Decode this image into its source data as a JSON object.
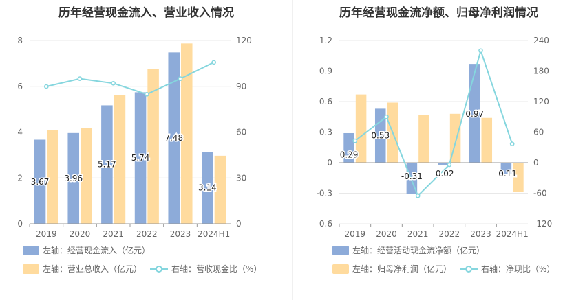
{
  "chart_data": [
    {
      "type": "bar",
      "title": "历年经营现金流入、营业收入情况",
      "categories": [
        "2019",
        "2020",
        "2021",
        "2022",
        "2023",
        "2024H1"
      ],
      "left_axis": {
        "ylim": [
          0,
          8
        ],
        "ticks": [
          "0",
          "2",
          "4",
          "6",
          "8"
        ]
      },
      "right_axis": {
        "ylim": [
          0,
          120
        ],
        "ticks": [
          "0",
          "30",
          "60",
          "90",
          "120"
        ]
      },
      "series": [
        {
          "name": "左轴：经营现金流入（亿元）",
          "type": "bar",
          "axis": "left",
          "color": "#8dabd9",
          "values": [
            3.67,
            3.96,
            5.17,
            5.74,
            7.48,
            3.14
          ],
          "labels": [
            "3.67",
            "3.96",
            "5.17",
            "5.74",
            "7.48",
            "3.14"
          ]
        },
        {
          "name": "左轴：营业总收入（亿元）",
          "type": "bar",
          "axis": "left",
          "color": "#ffdb9e",
          "values": [
            4.08,
            4.17,
            5.62,
            6.77,
            7.87,
            2.97
          ]
        },
        {
          "name": "右轴：营收现金比（%）",
          "type": "line",
          "axis": "right",
          "color": "#85d6de",
          "values": [
            89.9,
            95.0,
            92.0,
            84.8,
            95.0,
            105.7
          ]
        }
      ],
      "grid": true,
      "legend_position": "bottom"
    },
    {
      "type": "bar",
      "title": "历年经营现金流净额、归母净利润情况",
      "categories": [
        "2019",
        "2020",
        "2021",
        "2022",
        "2023",
        "2024H1"
      ],
      "left_axis": {
        "ylim": [
          -0.6,
          1.2
        ],
        "ticks": [
          "-0.6",
          "-0.3",
          "0",
          "0.3",
          "0.6",
          "0.9",
          "1.2"
        ]
      },
      "right_axis": {
        "ylim": [
          -120,
          240
        ],
        "ticks": [
          "-120",
          "-60",
          "0",
          "60",
          "120",
          "180",
          "240"
        ]
      },
      "series": [
        {
          "name": "左轴：经营活动现金流净额（亿元）",
          "type": "bar",
          "axis": "left",
          "color": "#8dabd9",
          "values": [
            0.29,
            0.53,
            -0.31,
            -0.02,
            0.97,
            -0.11
          ],
          "labels": [
            "0.29",
            "0.53",
            "-0.31",
            "-0.02",
            "0.97",
            "-0.11"
          ]
        },
        {
          "name": "左轴：归母净利润（亿元）",
          "type": "bar",
          "axis": "left",
          "color": "#ffdb9e",
          "values": [
            0.67,
            0.59,
            0.47,
            0.48,
            0.44,
            -0.29
          ]
        },
        {
          "name": "右轴：净现比（%）",
          "type": "line",
          "axis": "right",
          "color": "#85d6de",
          "values": [
            43.0,
            90.0,
            -65.0,
            -4.0,
            220.0,
            37.0
          ]
        }
      ],
      "grid": true,
      "legend_position": "bottom"
    }
  ]
}
